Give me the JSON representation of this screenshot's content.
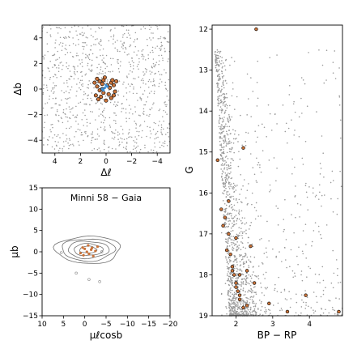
{
  "chart_data": [
    {
      "type": "scatter",
      "panel": "spatial",
      "title": "",
      "xlabel": "Δℓ",
      "ylabel": "Δb",
      "xlim": [
        5,
        -5
      ],
      "ylim": [
        -5,
        5
      ],
      "xticks": [
        -4,
        -2,
        0,
        2,
        4
      ],
      "yticks": [
        -4,
        -2,
        0,
        2,
        4
      ],
      "xtick_labels": [
        "−4",
        "−2",
        "0",
        "2",
        "4"
      ],
      "ytick_labels": [
        "−4",
        "−2",
        "0",
        "2",
        "4"
      ],
      "field_points": 900,
      "colors": {
        "field": "#9a9a9a",
        "members": "#c9733a",
        "member_edge": "#000000",
        "center": "#3a8fd6"
      },
      "series": [
        {
          "role": "members",
          "x": [
            0.5,
            -0.4,
            0.2,
            -0.6,
            0.7,
            0.1,
            -0.2,
            0.4,
            -0.7,
            0.8,
            0.3,
            -0.3,
            0.6,
            -0.5,
            0.0,
            0.9,
            -0.8,
            0.2,
            -0.1,
            0.5,
            -0.4,
            0.3,
            -0.6,
            0.7
          ],
          "y": [
            0.6,
            0.5,
            0.7,
            0.3,
            0.2,
            0.9,
            -0.4,
            -0.6,
            -0.2,
            -0.5,
            0.4,
            0.1,
            -0.8,
            0.7,
            -0.9,
            0.5,
            0.6,
            -0.3,
            0.3,
            -0.1,
            -0.7,
            0.0,
            -0.5,
            0.8
          ]
        },
        {
          "role": "center",
          "x": [
            0.1,
            -0.1,
            0.2,
            0.0,
            0.3
          ],
          "y": [
            0.1,
            0.2,
            -0.1,
            0.3,
            0.0
          ]
        }
      ]
    },
    {
      "type": "scatter",
      "panel": "proper-motion",
      "title": "Minni 58  −  Gaia",
      "xlabel": "μℓcosb",
      "ylabel": "μb",
      "xlim": [
        10,
        -20
      ],
      "ylim": [
        -15,
        15
      ],
      "xticks": [
        10,
        5,
        0,
        -5,
        -10,
        -15,
        -20
      ],
      "yticks": [
        15,
        10,
        5,
        0,
        -5,
        -10,
        -15
      ],
      "xtick_labels": [
        "10",
        "5",
        "0",
        "−5",
        "−10",
        "−15",
        "−20"
      ],
      "ytick_labels": [
        "15",
        "10",
        "5",
        "0",
        "−5",
        "−10",
        "−15"
      ],
      "contour_center": [
        -0.8,
        0.5
      ],
      "contour_radii": [
        [
          2.0,
          0.8
        ],
        [
          3.4,
          1.4
        ],
        [
          4.8,
          2.0
        ],
        [
          6.2,
          2.6
        ],
        [
          7.6,
          3.2
        ]
      ],
      "colors": {
        "contour": "#707070",
        "members": "#c9733a"
      },
      "series": [
        {
          "role": "members",
          "x": [
            -1.5,
            -0.5,
            0.5,
            -2.5,
            -1.0,
            0.0,
            -3.0,
            1.0,
            -2.0,
            -0.8,
            0.3,
            -1.7
          ],
          "y": [
            0.5,
            0.0,
            1.0,
            0.2,
            -0.5,
            0.7,
            1.2,
            -0.3,
            -1.0,
            1.5,
            -0.8,
            0.9
          ]
        },
        {
          "role": "outliers",
          "x": [
            5.5,
            -4.0,
            2.0,
            -1.0,
            -3.5
          ],
          "y": [
            -0.2,
            0.0,
            -5.0,
            -6.5,
            -7.0
          ]
        }
      ]
    },
    {
      "type": "scatter",
      "panel": "cmd",
      "title": "",
      "xlabel": "BP − RP",
      "ylabel": "G",
      "xlim": [
        1.35,
        4.9
      ],
      "ylim": [
        19.0,
        11.9
      ],
      "xticks": [
        2,
        3,
        4
      ],
      "yticks": [
        12,
        13,
        14,
        15,
        16,
        17,
        18,
        19
      ],
      "xtick_labels": [
        "2",
        "3",
        "4"
      ],
      "ytick_labels": [
        "12",
        "13",
        "14",
        "15",
        "16",
        "17",
        "18",
        "19"
      ],
      "field_points": 1500,
      "colors": {
        "field": "#9a9a9a",
        "members": "#c9733a",
        "member_edge": "#000000"
      },
      "series": [
        {
          "role": "members",
          "x": [
            1.5,
            1.6,
            1.7,
            1.8,
            1.65,
            1.75,
            1.85,
            1.9,
            1.95,
            2.0,
            2.05,
            2.1,
            2.2,
            2.3,
            2.1,
            2.0,
            1.9,
            2.4,
            2.5,
            2.9,
            3.4,
            3.9,
            4.8,
            2.55,
            2.2,
            1.8,
            2.0,
            2.3,
            2.1
          ],
          "y": [
            15.2,
            16.4,
            16.6,
            17.0,
            16.8,
            17.4,
            17.5,
            17.8,
            18.0,
            18.2,
            18.4,
            18.6,
            18.8,
            18.75,
            18.5,
            18.3,
            17.9,
            17.3,
            18.2,
            18.7,
            18.9,
            18.5,
            18.9,
            12.0,
            14.9,
            16.2,
            17.1,
            17.9,
            18.0
          ]
        }
      ]
    }
  ]
}
